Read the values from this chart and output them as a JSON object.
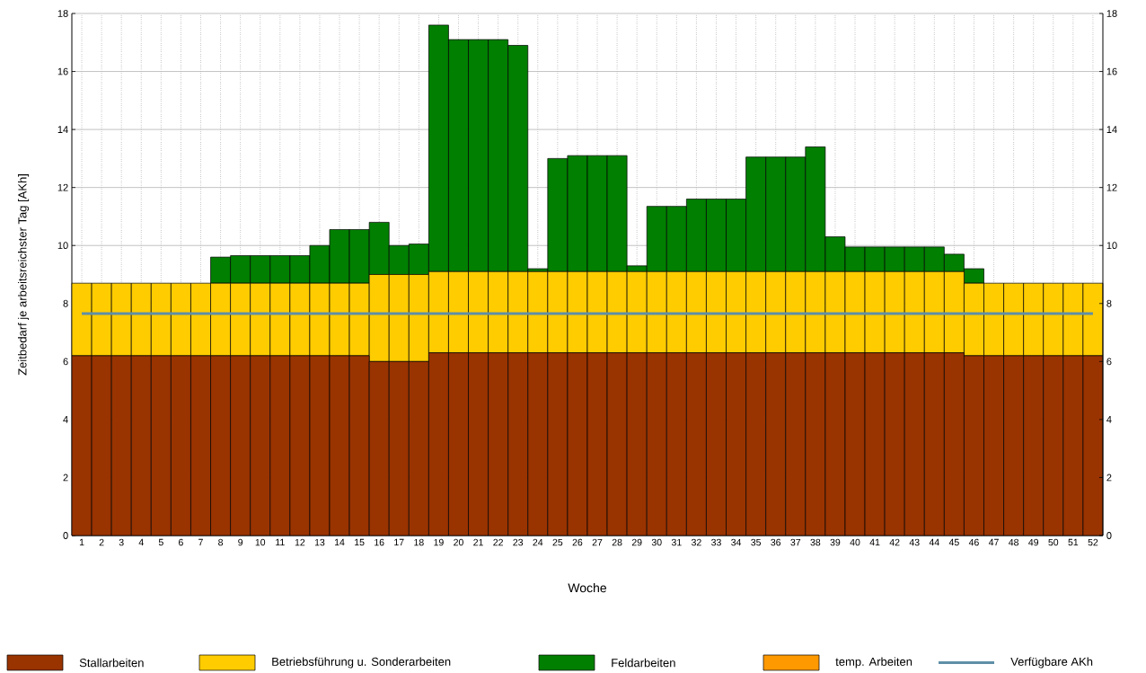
{
  "chart_data": {
    "type": "bar",
    "stacked": true,
    "xlabel": "Woche",
    "ylabel": "Zeitbedarf je arbeitsreichster Tag [AKh]",
    "categories": [
      "1",
      "2",
      "3",
      "4",
      "5",
      "6",
      "7",
      "8",
      "9",
      "10",
      "11",
      "12",
      "13",
      "14",
      "15",
      "16",
      "17",
      "18",
      "19",
      "20",
      "21",
      "22",
      "23",
      "24",
      "25",
      "26",
      "27",
      "28",
      "29",
      "30",
      "31",
      "32",
      "33",
      "34",
      "35",
      "36",
      "37",
      "38",
      "39",
      "40",
      "41",
      "42",
      "43",
      "44",
      "45",
      "46",
      "47",
      "48",
      "49",
      "50",
      "51",
      "52"
    ],
    "series": [
      {
        "name": "Stallarbeiten",
        "color": "#993300",
        "values": [
          6.2,
          6.2,
          6.2,
          6.2,
          6.2,
          6.2,
          6.2,
          6.2,
          6.2,
          6.2,
          6.2,
          6.2,
          6.2,
          6.2,
          6.2,
          6.0,
          6.0,
          6.0,
          6.3,
          6.3,
          6.3,
          6.3,
          6.3,
          6.3,
          6.3,
          6.3,
          6.3,
          6.3,
          6.3,
          6.3,
          6.3,
          6.3,
          6.3,
          6.3,
          6.3,
          6.3,
          6.3,
          6.3,
          6.3,
          6.3,
          6.3,
          6.3,
          6.3,
          6.3,
          6.3,
          6.2,
          6.2,
          6.2,
          6.2,
          6.2,
          6.2,
          6.2
        ]
      },
      {
        "name": "Betriebsführung u. Sonderarbeiten",
        "color": "#ffcc00",
        "values": [
          2.5,
          2.5,
          2.5,
          2.5,
          2.5,
          2.5,
          2.5,
          2.5,
          2.5,
          2.5,
          2.5,
          2.5,
          2.5,
          2.5,
          2.5,
          3.0,
          3.0,
          3.0,
          2.8,
          2.8,
          2.8,
          2.8,
          2.8,
          2.8,
          2.8,
          2.8,
          2.8,
          2.8,
          2.8,
          2.8,
          2.8,
          2.8,
          2.8,
          2.8,
          2.8,
          2.8,
          2.8,
          2.8,
          2.8,
          2.8,
          2.8,
          2.8,
          2.8,
          2.8,
          2.8,
          2.5,
          2.5,
          2.5,
          2.5,
          2.5,
          2.5,
          2.5
        ]
      },
      {
        "name": "Feldarbeiten",
        "color": "#007f00",
        "values": [
          0,
          0,
          0,
          0,
          0,
          0,
          0,
          0.9,
          0.95,
          0.95,
          0.95,
          0.95,
          1.3,
          1.85,
          1.85,
          1.8,
          1.0,
          1.05,
          8.5,
          8.0,
          8.0,
          8.0,
          7.8,
          0.1,
          3.9,
          4.0,
          4.0,
          4.0,
          0.2,
          2.25,
          2.25,
          2.5,
          2.5,
          2.5,
          3.95,
          3.95,
          3.95,
          4.3,
          1.2,
          0.85,
          0.85,
          0.85,
          0.85,
          0.85,
          0.6,
          0.5,
          0,
          0,
          0,
          0,
          0,
          0
        ]
      },
      {
        "name": "temp. Arbeiten",
        "color": "#ff9900",
        "values": [
          0,
          0,
          0,
          0,
          0,
          0,
          0,
          0,
          0,
          0,
          0,
          0,
          0,
          0,
          0,
          0,
          0,
          0,
          0,
          0,
          0,
          0,
          0,
          0,
          0,
          0,
          0,
          0,
          0,
          0,
          0,
          0,
          0,
          0,
          0,
          0,
          0,
          0,
          0,
          0,
          0,
          0,
          0,
          0,
          0,
          0,
          0,
          0,
          0,
          0,
          0,
          0
        ]
      },
      {
        "name": "Verfügbare AKh",
        "type": "line",
        "color": "#5f8fa8",
        "values": [
          7.65,
          7.65,
          7.65,
          7.65,
          7.65,
          7.65,
          7.65,
          7.65,
          7.65,
          7.65,
          7.65,
          7.65,
          7.65,
          7.65,
          7.65,
          7.65,
          7.65,
          7.65,
          7.65,
          7.65,
          7.65,
          7.65,
          7.65,
          7.65,
          7.65,
          7.65,
          7.65,
          7.65,
          7.65,
          7.65,
          7.65,
          7.65,
          7.65,
          7.65,
          7.65,
          7.65,
          7.65,
          7.65,
          7.65,
          7.65,
          7.65,
          7.65,
          7.65,
          7.65,
          7.65,
          7.65,
          7.65,
          7.65,
          7.65,
          7.65,
          7.65,
          7.65
        ]
      }
    ],
    "ylim": [
      0,
      18
    ],
    "yticks": [
      0,
      2,
      4,
      6,
      8,
      10,
      12,
      14,
      16,
      18
    ],
    "y2lim": [
      0,
      18
    ],
    "y2ticks": [
      0,
      2,
      4,
      6,
      8,
      10,
      12,
      14,
      16,
      18
    ],
    "grid": true,
    "legend": "bottom"
  }
}
